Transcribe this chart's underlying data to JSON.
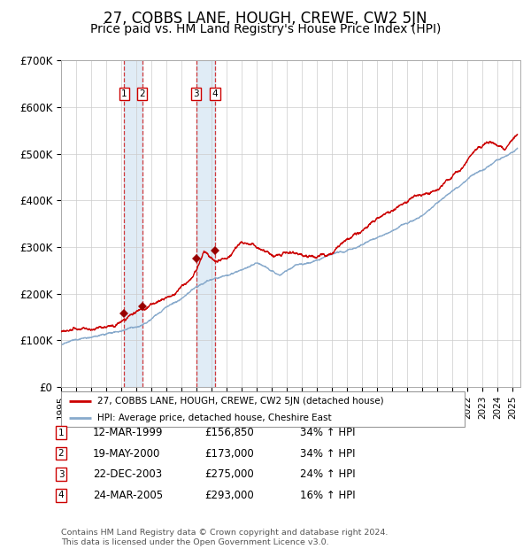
{
  "title": "27, COBBS LANE, HOUGH, CREWE, CW2 5JN",
  "subtitle": "Price paid vs. HM Land Registry's House Price Index (HPI)",
  "title_fontsize": 12,
  "subtitle_fontsize": 10,
  "red_line_color": "#cc0000",
  "blue_line_color": "#88aacc",
  "background_color": "#ffffff",
  "grid_color": "#cccccc",
  "ylim": [
    0,
    700000
  ],
  "yticks": [
    0,
    100000,
    200000,
    300000,
    400000,
    500000,
    600000,
    700000
  ],
  "ytick_labels": [
    "£0",
    "£100K",
    "£200K",
    "£300K",
    "£400K",
    "£500K",
    "£600K",
    "£700K"
  ],
  "xlim_start": 1995.0,
  "xlim_end": 2025.5,
  "transactions": [
    {
      "num": 1,
      "date_str": "12-MAR-1999",
      "year": 1999.2,
      "price": 156850,
      "pct": "34%"
    },
    {
      "num": 2,
      "date_str": "19-MAY-2000",
      "year": 2000.38,
      "price": 173000,
      "pct": "34%"
    },
    {
      "num": 3,
      "date_str": "22-DEC-2003",
      "year": 2003.97,
      "price": 275000,
      "pct": "24%"
    },
    {
      "num": 4,
      "date_str": "24-MAR-2005",
      "year": 2005.23,
      "price": 293000,
      "pct": "16%"
    }
  ],
  "legend_label_red": "27, COBBS LANE, HOUGH, CREWE, CW2 5JN (detached house)",
  "legend_label_blue": "HPI: Average price, detached house, Cheshire East",
  "footer_text": "Contains HM Land Registry data © Crown copyright and database right 2024.\nThis data is licensed under the Open Government Licence v3.0.",
  "table_rows": [
    {
      "num": 1,
      "date": "12-MAR-1999",
      "price": "£156,850",
      "pct": "34% ↑ HPI"
    },
    {
      "num": 2,
      "date": "19-MAY-2000",
      "price": "£173,000",
      "pct": "34% ↑ HPI"
    },
    {
      "num": 3,
      "date": "22-DEC-2003",
      "price": "£275,000",
      "pct": "24% ↑ HPI"
    },
    {
      "num": 4,
      "date": "24-MAR-2005",
      "price": "£293,000",
      "pct": "16% ↑ HPI"
    }
  ]
}
